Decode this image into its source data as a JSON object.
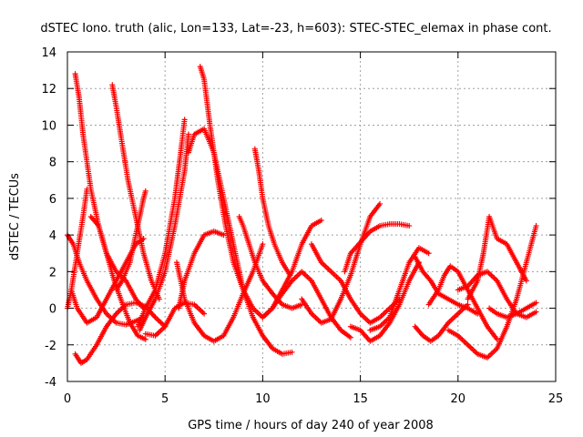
{
  "chart_data": {
    "type": "scatter",
    "title": "dSTEC Iono. truth (alic, Lon=133, Lat=-23, h=603): STEC-STEC_elemax in phase cont.",
    "xlabel": "GPS time / hours of day 240 of year 2008",
    "ylabel": "dSTEC  / TECUs",
    "xlim": [
      0,
      25
    ],
    "ylim": [
      -4,
      14
    ],
    "xticks": [
      0,
      5,
      10,
      15,
      20,
      25
    ],
    "yticks": [
      -4,
      -2,
      0,
      2,
      4,
      6,
      8,
      10,
      12,
      14
    ],
    "grid": true,
    "marker": "+",
    "color": "#ff0000",
    "series": [
      {
        "x": [
          0.0,
          0.3,
          0.6,
          1.0,
          1.5,
          2.0,
          2.5,
          3.0,
          3.5,
          3.9
        ],
        "y": [
          4.0,
          3.5,
          2.5,
          1.5,
          0.5,
          -0.3,
          -0.8,
          -0.9,
          -0.7,
          -0.5
        ]
      },
      {
        "x": [
          0.0,
          0.2,
          0.5,
          0.8,
          1.0
        ],
        "y": [
          0.0,
          1.0,
          3.0,
          5.0,
          6.5
        ]
      },
      {
        "x": [
          0.4,
          0.6,
          0.8,
          1.0,
          1.2,
          1.6,
          2.0,
          2.4,
          2.8,
          3.2,
          3.6,
          4.0
        ],
        "y": [
          12.8,
          11.5,
          9.5,
          8.0,
          6.5,
          4.5,
          3.0,
          1.5,
          0.3,
          -0.8,
          -1.5,
          -1.7
        ]
      },
      {
        "x": [
          0.4,
          0.7,
          1.0,
          1.5,
          2.0,
          2.5,
          3.0,
          3.5,
          4.0,
          4.5,
          5.0
        ],
        "y": [
          -2.5,
          -3.0,
          -2.8,
          -2.0,
          -1.0,
          -0.3,
          0.2,
          0.3,
          0.1,
          -0.5,
          -1.0
        ]
      },
      {
        "x": [
          0.2,
          0.5,
          1.0,
          1.5,
          2.0,
          2.5,
          3.0,
          3.5,
          3.9
        ],
        "y": [
          1.0,
          0.0,
          -0.8,
          -0.5,
          0.5,
          1.5,
          2.5,
          3.5,
          3.8
        ]
      },
      {
        "x": [
          1.2,
          1.6,
          2.0,
          2.5,
          3.0,
          3.5,
          3.9
        ],
        "y": [
          5.0,
          4.5,
          3.0,
          2.0,
          1.5,
          0.5,
          0.0
        ]
      },
      {
        "x": [
          2.3,
          2.5,
          2.8,
          3.1,
          3.5,
          3.9,
          4.3,
          4.7
        ],
        "y": [
          12.2,
          11.0,
          9.0,
          7.0,
          5.0,
          3.0,
          1.5,
          0.5
        ]
      },
      {
        "x": [
          2.5,
          2.8,
          3.2,
          3.6,
          3.9,
          4.0
        ],
        "y": [
          1.0,
          1.5,
          2.5,
          4.5,
          6.0,
          6.4
        ]
      },
      {
        "x": [
          3.6,
          4.0,
          4.5,
          5.0,
          5.5,
          5.8,
          6.0
        ],
        "y": [
          -1.0,
          0.0,
          1.0,
          3.0,
          6.0,
          8.5,
          10.3
        ]
      },
      {
        "x": [
          3.7,
          4.0,
          4.5,
          5.0,
          5.5,
          6.0,
          6.2
        ],
        "y": [
          -1.2,
          -0.5,
          0.5,
          2.0,
          4.5,
          7.5,
          9.5
        ]
      },
      {
        "x": [
          4.0,
          4.5,
          5.0,
          5.5,
          6.0,
          6.5,
          7.0
        ],
        "y": [
          -1.4,
          -1.5,
          -1.0,
          0.0,
          0.3,
          0.2,
          -0.3
        ]
      },
      {
        "x": [
          5.6,
          6.0,
          6.5,
          7.0,
          7.5,
          8.0,
          8.5,
          9.0,
          9.5,
          10.0
        ],
        "y": [
          2.5,
          0.5,
          -0.8,
          -1.5,
          -1.8,
          -1.5,
          -0.5,
          0.8,
          2.0,
          3.5
        ]
      },
      {
        "x": [
          6.2,
          6.5,
          7.0,
          7.5,
          8.0,
          8.5,
          9.0,
          9.5,
          10.0,
          10.5,
          11.0,
          11.5
        ],
        "y": [
          8.5,
          9.5,
          9.8,
          8.5,
          6.0,
          3.5,
          1.0,
          -0.5,
          -1.5,
          -2.2,
          -2.5,
          -2.4
        ]
      },
      {
        "x": [
          6.8,
          7.0,
          7.3,
          7.7,
          8.1,
          8.5,
          9.0,
          9.5,
          10.0,
          10.5,
          11.0,
          11.5,
          12.0,
          12.5,
          13.0
        ],
        "y": [
          13.2,
          12.5,
          10.0,
          7.0,
          4.5,
          2.5,
          1.0,
          0.0,
          -0.5,
          0.0,
          1.0,
          2.0,
          3.5,
          4.5,
          4.8
        ]
      },
      {
        "x": [
          5.7,
          6.0,
          6.5,
          7.0,
          7.5,
          8.0
        ],
        "y": [
          0.0,
          1.5,
          3.0,
          4.0,
          4.2,
          4.0
        ]
      },
      {
        "x": [
          8.8,
          9.0,
          9.3,
          9.6,
          10.0,
          10.5,
          11.0,
          11.5,
          12.0
        ],
        "y": [
          5.0,
          4.5,
          3.5,
          2.5,
          1.5,
          0.8,
          0.2,
          0.0,
          0.2
        ]
      },
      {
        "x": [
          9.6,
          9.8,
          10.0,
          10.3,
          10.6,
          11.0,
          11.4
        ],
        "y": [
          8.7,
          7.5,
          6.0,
          4.5,
          3.5,
          2.5,
          1.8
        ]
      },
      {
        "x": [
          10.0,
          10.5,
          11.0,
          11.5,
          12.0,
          12.5,
          13.0,
          13.5,
          14.0,
          14.5
        ],
        "y": [
          -0.5,
          0.0,
          0.8,
          1.5,
          2.0,
          1.5,
          0.5,
          -0.5,
          -1.2,
          -1.6
        ]
      },
      {
        "x": [
          12.0,
          12.5,
          13.0,
          13.5,
          14.0,
          14.5,
          15.0,
          15.5,
          16.0
        ],
        "y": [
          0.5,
          -0.3,
          -0.8,
          -0.6,
          0.5,
          1.8,
          3.5,
          5.0,
          5.7
        ]
      },
      {
        "x": [
          12.5,
          13.0,
          13.5,
          14.0,
          14.5,
          15.0,
          15.5,
          16.0,
          16.5,
          17.0
        ],
        "y": [
          3.5,
          2.5,
          2.0,
          1.5,
          0.5,
          -0.3,
          -0.8,
          -0.5,
          0.0,
          0.5
        ]
      },
      {
        "x": [
          14.2,
          14.5,
          15.0,
          15.5,
          16.0,
          16.5,
          17.0,
          17.5
        ],
        "y": [
          2.0,
          3.0,
          3.6,
          4.2,
          4.5,
          4.6,
          4.6,
          4.5
        ]
      },
      {
        "x": [
          14.5,
          15.0,
          15.5,
          16.0,
          16.5,
          17.0,
          17.5,
          18.0
        ],
        "y": [
          -1.0,
          -1.2,
          -1.8,
          -1.5,
          -0.8,
          0.2,
          1.5,
          2.5
        ]
      },
      {
        "x": [
          15.5,
          16.0,
          16.5,
          17.0,
          17.5,
          18.0,
          18.5
        ],
        "y": [
          -1.2,
          -1.0,
          -0.5,
          1.0,
          2.5,
          3.3,
          3.0
        ]
      },
      {
        "x": [
          17.8,
          18.2,
          18.6,
          19.0,
          19.5,
          20.0,
          20.5,
          21.0
        ],
        "y": [
          2.8,
          2.0,
          1.5,
          0.8,
          0.5,
          0.2,
          0.0,
          -0.3
        ]
      },
      {
        "x": [
          17.8,
          18.2,
          18.6,
          19.0,
          19.5,
          20.0,
          20.5
        ],
        "y": [
          -1.0,
          -1.5,
          -1.8,
          -1.5,
          -0.8,
          -0.3,
          0.2
        ]
      },
      {
        "x": [
          18.5,
          19.0,
          19.3,
          19.6,
          20.0,
          20.5,
          21.0,
          21.5,
          22.0
        ],
        "y": [
          0.2,
          1.0,
          1.8,
          2.3,
          2.0,
          1.0,
          0.0,
          -1.0,
          -1.7
        ]
      },
      {
        "x": [
          19.5,
          20.0,
          20.5,
          21.0,
          21.5,
          22.0,
          22.5,
          23.0,
          23.5,
          24.0
        ],
        "y": [
          -1.2,
          -1.5,
          -2.0,
          -2.5,
          -2.7,
          -2.2,
          -1.0,
          0.5,
          2.5,
          4.5
        ]
      },
      {
        "x": [
          20.0,
          20.5,
          21.0,
          21.5,
          22.0,
          22.5,
          23.0,
          23.5,
          24.0
        ],
        "y": [
          1.0,
          1.2,
          1.8,
          2.0,
          1.5,
          0.5,
          -0.3,
          -0.5,
          -0.2
        ]
      },
      {
        "x": [
          20.5,
          21.0,
          21.3,
          21.6,
          22.0,
          22.5,
          23.0,
          23.5
        ],
        "y": [
          0.5,
          1.5,
          3.0,
          5.0,
          3.8,
          3.5,
          2.5,
          1.5
        ]
      },
      {
        "x": [
          21.6,
          22.0,
          22.5,
          23.0,
          23.5,
          24.0
        ],
        "y": [
          0.0,
          -0.3,
          -0.5,
          -0.3,
          0.0,
          0.3
        ]
      }
    ]
  }
}
